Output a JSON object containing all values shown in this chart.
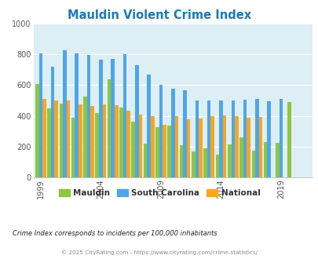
{
  "title": "Mauldin Violent Crime Index",
  "title_color": "#1a7ab5",
  "years": [
    1999,
    2000,
    2001,
    2002,
    2003,
    2004,
    2005,
    2006,
    2007,
    2008,
    2009,
    2010,
    2011,
    2012,
    2013,
    2014,
    2015,
    2016,
    2017,
    2018,
    2019,
    2020,
    2021
  ],
  "mauldin": [
    605,
    450,
    480,
    385,
    525,
    420,
    635,
    455,
    360,
    220,
    325,
    335,
    210,
    170,
    190,
    150,
    215,
    260,
    175,
    230,
    225,
    490,
    0
  ],
  "south_carolina": [
    805,
    720,
    825,
    805,
    795,
    765,
    770,
    800,
    730,
    665,
    600,
    575,
    565,
    498,
    498,
    500,
    500,
    505,
    510,
    495,
    510,
    0,
    0
  ],
  "national": [
    510,
    500,
    498,
    472,
    465,
    475,
    470,
    435,
    410,
    395,
    340,
    398,
    375,
    380,
    395,
    405,
    400,
    385,
    390,
    0,
    0,
    0,
    0
  ],
  "mauldin_color": "#8dc63f",
  "sc_color": "#4da6e8",
  "national_color": "#f5a623",
  "plot_bg": "#ddeef5",
  "ylim": [
    0,
    1000
  ],
  "yticks": [
    0,
    200,
    400,
    600,
    800,
    1000
  ],
  "xtick_labels": [
    "1999",
    "2004",
    "2009",
    "2014",
    "2019"
  ],
  "xtick_positions": [
    1999,
    2004,
    2009,
    2014,
    2019
  ],
  "note": "Crime Index corresponds to incidents per 100,000 inhabitants",
  "footer": "© 2025 CityRating.com - https://www.cityrating.com/crime-statistics/"
}
